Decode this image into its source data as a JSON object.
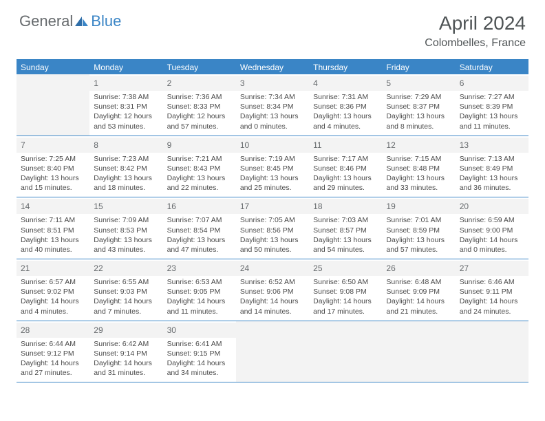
{
  "brand": {
    "general": "General",
    "blue": "Blue"
  },
  "title": "April 2024",
  "location": "Colombelles, France",
  "colors": {
    "accent": "#3a85c6",
    "header_text": "#4f5456",
    "body_text": "#4a4a4a",
    "daynum_bg": "#f3f3f3",
    "background": "#ffffff"
  },
  "dow": [
    "Sunday",
    "Monday",
    "Tuesday",
    "Wednesday",
    "Thursday",
    "Friday",
    "Saturday"
  ],
  "weeks": [
    [
      null,
      {
        "n": "1",
        "sr": "7:38 AM",
        "ss": "8:31 PM",
        "dl": "12 hours and 53 minutes."
      },
      {
        "n": "2",
        "sr": "7:36 AM",
        "ss": "8:33 PM",
        "dl": "12 hours and 57 minutes."
      },
      {
        "n": "3",
        "sr": "7:34 AM",
        "ss": "8:34 PM",
        "dl": "13 hours and 0 minutes."
      },
      {
        "n": "4",
        "sr": "7:31 AM",
        "ss": "8:36 PM",
        "dl": "13 hours and 4 minutes."
      },
      {
        "n": "5",
        "sr": "7:29 AM",
        "ss": "8:37 PM",
        "dl": "13 hours and 8 minutes."
      },
      {
        "n": "6",
        "sr": "7:27 AM",
        "ss": "8:39 PM",
        "dl": "13 hours and 11 minutes."
      }
    ],
    [
      {
        "n": "7",
        "sr": "7:25 AM",
        "ss": "8:40 PM",
        "dl": "13 hours and 15 minutes."
      },
      {
        "n": "8",
        "sr": "7:23 AM",
        "ss": "8:42 PM",
        "dl": "13 hours and 18 minutes."
      },
      {
        "n": "9",
        "sr": "7:21 AM",
        "ss": "8:43 PM",
        "dl": "13 hours and 22 minutes."
      },
      {
        "n": "10",
        "sr": "7:19 AM",
        "ss": "8:45 PM",
        "dl": "13 hours and 25 minutes."
      },
      {
        "n": "11",
        "sr": "7:17 AM",
        "ss": "8:46 PM",
        "dl": "13 hours and 29 minutes."
      },
      {
        "n": "12",
        "sr": "7:15 AM",
        "ss": "8:48 PM",
        "dl": "13 hours and 33 minutes."
      },
      {
        "n": "13",
        "sr": "7:13 AM",
        "ss": "8:49 PM",
        "dl": "13 hours and 36 minutes."
      }
    ],
    [
      {
        "n": "14",
        "sr": "7:11 AM",
        "ss": "8:51 PM",
        "dl": "13 hours and 40 minutes."
      },
      {
        "n": "15",
        "sr": "7:09 AM",
        "ss": "8:53 PM",
        "dl": "13 hours and 43 minutes."
      },
      {
        "n": "16",
        "sr": "7:07 AM",
        "ss": "8:54 PM",
        "dl": "13 hours and 47 minutes."
      },
      {
        "n": "17",
        "sr": "7:05 AM",
        "ss": "8:56 PM",
        "dl": "13 hours and 50 minutes."
      },
      {
        "n": "18",
        "sr": "7:03 AM",
        "ss": "8:57 PM",
        "dl": "13 hours and 54 minutes."
      },
      {
        "n": "19",
        "sr": "7:01 AM",
        "ss": "8:59 PM",
        "dl": "13 hours and 57 minutes."
      },
      {
        "n": "20",
        "sr": "6:59 AM",
        "ss": "9:00 PM",
        "dl": "14 hours and 0 minutes."
      }
    ],
    [
      {
        "n": "21",
        "sr": "6:57 AM",
        "ss": "9:02 PM",
        "dl": "14 hours and 4 minutes."
      },
      {
        "n": "22",
        "sr": "6:55 AM",
        "ss": "9:03 PM",
        "dl": "14 hours and 7 minutes."
      },
      {
        "n": "23",
        "sr": "6:53 AM",
        "ss": "9:05 PM",
        "dl": "14 hours and 11 minutes."
      },
      {
        "n": "24",
        "sr": "6:52 AM",
        "ss": "9:06 PM",
        "dl": "14 hours and 14 minutes."
      },
      {
        "n": "25",
        "sr": "6:50 AM",
        "ss": "9:08 PM",
        "dl": "14 hours and 17 minutes."
      },
      {
        "n": "26",
        "sr": "6:48 AM",
        "ss": "9:09 PM",
        "dl": "14 hours and 21 minutes."
      },
      {
        "n": "27",
        "sr": "6:46 AM",
        "ss": "9:11 PM",
        "dl": "14 hours and 24 minutes."
      }
    ],
    [
      {
        "n": "28",
        "sr": "6:44 AM",
        "ss": "9:12 PM",
        "dl": "14 hours and 27 minutes."
      },
      {
        "n": "29",
        "sr": "6:42 AM",
        "ss": "9:14 PM",
        "dl": "14 hours and 31 minutes."
      },
      {
        "n": "30",
        "sr": "6:41 AM",
        "ss": "9:15 PM",
        "dl": "14 hours and 34 minutes."
      },
      null,
      null,
      null,
      null
    ]
  ],
  "labels": {
    "sunrise": "Sunrise: ",
    "sunset": "Sunset: ",
    "daylight": "Daylight: "
  }
}
